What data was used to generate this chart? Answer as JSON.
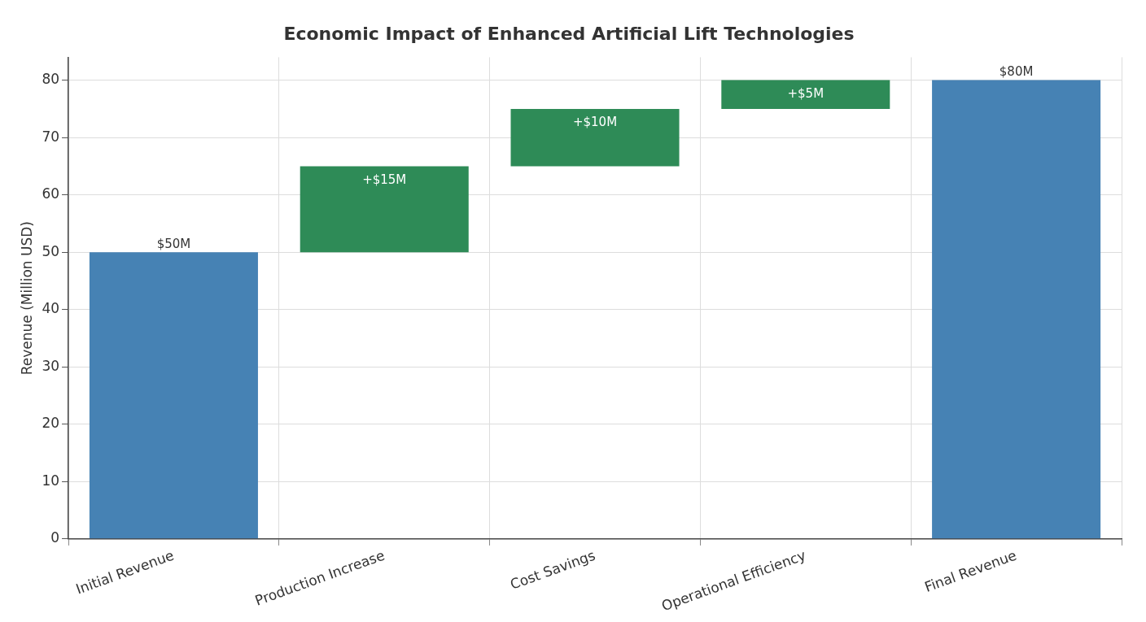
{
  "chart_data": {
    "type": "bar",
    "title": "Economic Impact of Enhanced Artificial Lift Technologies",
    "ylabel": "Revenue (Million USD)",
    "categories": [
      "Initial Revenue",
      "Production Increase",
      "Cost Savings",
      "Operational Efficiency",
      "Final Revenue"
    ],
    "values": [
      50,
      15,
      10,
      5,
      80
    ],
    "base": [
      0,
      50,
      65,
      75,
      0
    ],
    "colors": [
      "#4682b4",
      "#2e8b57",
      "#2e8b57",
      "#2e8b57",
      "#4682b4"
    ],
    "value_labels": [
      "$50M",
      "+$15M",
      "+$10M",
      "+$5M",
      "$80M"
    ],
    "ylim": [
      0,
      84
    ],
    "yticks": [
      0,
      10,
      20,
      30,
      40,
      50,
      60,
      70,
      80
    ],
    "grid": true,
    "legend": false
  }
}
